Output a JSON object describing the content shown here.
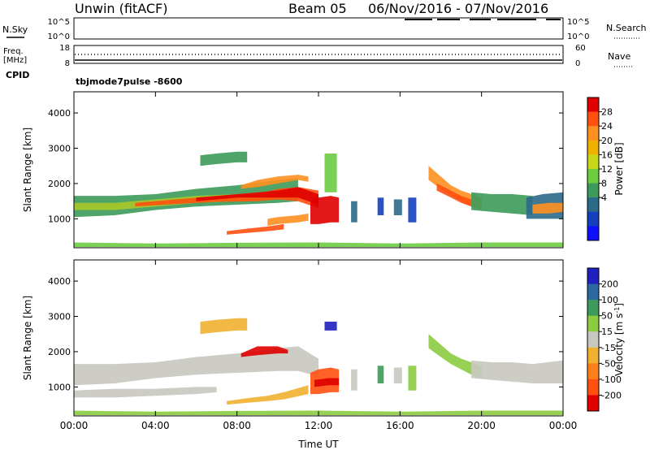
{
  "header": {
    "station": "Unwin (fitACF)",
    "beam": "Beam 05",
    "date_range": "06/Nov/2016 - 07/Nov/2016"
  },
  "nsky_panel": {
    "left_label": "N.Sky",
    "right_label": "N.Search",
    "ticks": [
      "10^5",
      "10^0"
    ],
    "right_ticks": [
      "10^5",
      "10^0"
    ]
  },
  "freq_panel": {
    "left_label_1": "Freq.",
    "left_label_2": "[MHz]",
    "left_ticks": [
      "18",
      "8"
    ],
    "right_label": "Nave",
    "right_ticks": [
      "60",
      "0"
    ],
    "cpid_label": "CPID",
    "cpid_value": "tbjmode7pulse -8600"
  },
  "power_colorbar": {
    "label": "Power [dB]",
    "ticks": [
      "28",
      "24",
      "20",
      "16",
      "12",
      "8",
      "4"
    ],
    "colors": [
      "#e00000",
      "#ff5010",
      "#ff9020",
      "#f0b000",
      "#c8d818",
      "#6ccc40",
      "#3c9a5a",
      "#2c6a8a",
      "#1440c0",
      "#1010ff"
    ]
  },
  "velocity_colorbar": {
    "label": "Velocity [m s",
    "label_sup": "-1",
    "label_end": "]",
    "ticks": [
      "200",
      "100",
      "50",
      "15",
      "-15",
      "-50",
      "-100",
      "-200"
    ],
    "colors": [
      "#2020c0",
      "#2a6aa0",
      "#3c9a5a",
      "#8ccc40",
      "#c8c8c0",
      "#f0b030",
      "#ff8018",
      "#ff5010",
      "#e00000"
    ]
  },
  "chart_data": [
    {
      "type": "heatmap",
      "name": "power",
      "xlabel": "",
      "ylabel": "Slant Range [km]",
      "x_ticks": [
        "00:00",
        "04:00",
        "08:00",
        "12:00",
        "16:00",
        "20:00",
        "00:00"
      ],
      "x_tick_hours": [
        0,
        4,
        8,
        12,
        16,
        20,
        24
      ],
      "y_ticks": [
        1000,
        2000,
        3000,
        4000
      ],
      "xlim": [
        0,
        24
      ],
      "ylim": [
        180,
        4600
      ],
      "bands": [
        {
          "h": [
            0,
            2,
            4,
            6,
            8,
            10,
            11
          ],
          "lo": [
            1050,
            1100,
            1250,
            1350,
            1400,
            1450,
            1500
          ],
          "hi": [
            1650,
            1650,
            1700,
            1850,
            1950,
            2100,
            2150
          ],
          "color": "#3c9a5a"
        },
        {
          "h": [
            0,
            2,
            4,
            6,
            8,
            10,
            11
          ],
          "lo": [
            1250,
            1250,
            1350,
            1450,
            1500,
            1550,
            1600
          ],
          "hi": [
            1450,
            1450,
            1550,
            1650,
            1700,
            1800,
            1850
          ],
          "color": "#a8c828"
        },
        {
          "h": [
            3,
            5,
            7,
            9,
            10,
            11,
            12
          ],
          "lo": [
            1350,
            1420,
            1480,
            1500,
            1550,
            1500,
            1300
          ],
          "hi": [
            1450,
            1550,
            1650,
            1700,
            1850,
            1900,
            1800
          ],
          "color": "#ff5010"
        },
        {
          "h": [
            6,
            8,
            10,
            11,
            12
          ],
          "lo": [
            1500,
            1600,
            1600,
            1600,
            1400
          ],
          "hi": [
            1600,
            1700,
            1800,
            1900,
            1700
          ],
          "color": "#e00000"
        },
        {
          "h": [
            8.2,
            9,
            10,
            11,
            11.5
          ],
          "lo": [
            1850,
            1900,
            2000,
            2100,
            2050
          ],
          "hi": [
            1950,
            2100,
            2200,
            2250,
            2200
          ],
          "color": "#ff9020"
        },
        {
          "h": [
            11.6,
            12,
            12.6,
            13
          ],
          "lo": [
            850,
            850,
            900,
            900
          ],
          "hi": [
            1500,
            1600,
            1650,
            1600
          ],
          "color": "#e00000"
        },
        {
          "h": [
            7.5,
            8.5,
            9.5,
            10.3
          ],
          "lo": [
            550,
            600,
            650,
            700
          ],
          "hi": [
            650,
            720,
            780,
            850
          ],
          "color": "#ff5010"
        },
        {
          "h": [
            9.5,
            10,
            11,
            11.5
          ],
          "lo": [
            800,
            850,
            900,
            950
          ],
          "hi": [
            1000,
            1050,
            1100,
            1150
          ],
          "color": "#ff9020"
        },
        {
          "h": [
            6.2,
            7,
            8,
            8.5
          ],
          "lo": [
            2500,
            2550,
            2600,
            2600
          ],
          "hi": [
            2800,
            2850,
            2900,
            2900
          ],
          "color": "#3c9a5a"
        },
        {
          "h": [
            17.4,
            18,
            18.5,
            19,
            19.5,
            20
          ],
          "lo": [
            2100,
            1850,
            1650,
            1500,
            1350,
            1250
          ],
          "hi": [
            2500,
            2200,
            1950,
            1800,
            1700,
            1600
          ],
          "color": "#ff9020"
        },
        {
          "h": [
            17.8,
            18.5,
            19,
            19.5
          ],
          "lo": [
            1800,
            1600,
            1450,
            1350
          ],
          "hi": [
            2000,
            1800,
            1650,
            1550
          ],
          "color": "#ff5010"
        },
        {
          "h": [
            19.5,
            20.5,
            21.5,
            22.5
          ],
          "lo": [
            1250,
            1200,
            1150,
            1100
          ],
          "hi": [
            1750,
            1700,
            1700,
            1650
          ],
          "color": "#3c9a5a"
        },
        {
          "h": [
            22.2,
            23,
            24
          ],
          "lo": [
            1000,
            1000,
            1000
          ],
          "hi": [
            1600,
            1700,
            1750
          ],
          "color": "#2c6a8a"
        },
        {
          "h": [
            22.5,
            23.3,
            24
          ],
          "lo": [
            1150,
            1150,
            1200
          ],
          "hi": [
            1400,
            1450,
            1450
          ],
          "color": "#ff9020"
        },
        {
          "h": [
            0,
            4,
            8,
            12,
            16,
            20,
            24
          ],
          "lo": [
            200,
            200,
            200,
            200,
            200,
            200,
            200
          ],
          "hi": [
            330,
            300,
            320,
            330,
            300,
            330,
            330
          ],
          "color": "#6ccc40"
        },
        {
          "h": [
            13.6,
            13.9
          ],
          "lo": [
            900,
            900
          ],
          "hi": [
            1500,
            1500
          ],
          "color": "#2c6a8a"
        },
        {
          "h": [
            14.9,
            15.2
          ],
          "lo": [
            1100,
            1100
          ],
          "hi": [
            1600,
            1600
          ],
          "color": "#1440c0"
        },
        {
          "h": [
            15.7,
            16.1
          ],
          "lo": [
            1100,
            1100
          ],
          "hi": [
            1550,
            1550
          ],
          "color": "#2c6a8a"
        },
        {
          "h": [
            16.4,
            16.8
          ],
          "lo": [
            900,
            900
          ],
          "hi": [
            1600,
            1600
          ],
          "color": "#1440c0"
        },
        {
          "h": [
            12.3,
            12.9
          ],
          "lo": [
            1750,
            1750
          ],
          "hi": [
            2850,
            2850
          ],
          "color": "#6ccc40"
        }
      ]
    },
    {
      "type": "heatmap",
      "name": "velocity",
      "xlabel": "Time UT",
      "ylabel": "Slant Range [km]",
      "x_ticks": [
        "00:00",
        "04:00",
        "08:00",
        "12:00",
        "16:00",
        "20:00",
        "00:00"
      ],
      "x_tick_hours": [
        0,
        4,
        8,
        12,
        16,
        20,
        24
      ],
      "y_ticks": [
        1000,
        2000,
        3000,
        4000
      ],
      "xlim": [
        0,
        24
      ],
      "ylim": [
        180,
        4600
      ],
      "bands": [
        {
          "h": [
            0,
            2,
            4,
            6,
            8,
            10,
            11,
            12
          ],
          "lo": [
            1050,
            1100,
            1250,
            1350,
            1400,
            1450,
            1450,
            1300
          ],
          "hi": [
            1650,
            1650,
            1700,
            1850,
            1950,
            2100,
            2150,
            1800
          ],
          "color": "#c8c8c0"
        },
        {
          "h": [
            0,
            2,
            4,
            6,
            7
          ],
          "lo": [
            700,
            700,
            750,
            800,
            850
          ],
          "hi": [
            900,
            950,
            950,
            1000,
            1000
          ],
          "color": "#c8c8c0"
        },
        {
          "h": [
            8.2,
            9,
            10,
            10.5
          ],
          "lo": [
            1850,
            1900,
            1950,
            1950
          ],
          "hi": [
            1950,
            2150,
            2150,
            2050
          ],
          "color": "#e00000"
        },
        {
          "h": [
            11.6,
            12,
            12.6,
            13
          ],
          "lo": [
            800,
            800,
            850,
            850
          ],
          "hi": [
            1400,
            1500,
            1550,
            1500
          ],
          "color": "#ff5010"
        },
        {
          "h": [
            11.8,
            12.5,
            13
          ],
          "lo": [
            1000,
            1050,
            1050
          ],
          "hi": [
            1200,
            1250,
            1250
          ],
          "color": "#e00000"
        },
        {
          "h": [
            7.5,
            8.5,
            9.5,
            10.3,
            11.5
          ],
          "lo": [
            500,
            550,
            600,
            650,
            800
          ],
          "hi": [
            600,
            680,
            750,
            850,
            1050
          ],
          "color": "#f0b030"
        },
        {
          "h": [
            6.2,
            7,
            8,
            8.5
          ],
          "lo": [
            2500,
            2550,
            2600,
            2600
          ],
          "hi": [
            2850,
            2900,
            2950,
            2950
          ],
          "color": "#f0b030"
        },
        {
          "h": [
            17.4,
            18,
            18.5,
            19,
            19.5,
            20
          ],
          "lo": [
            2100,
            1850,
            1650,
            1500,
            1350,
            1250
          ],
          "hi": [
            2500,
            2200,
            1950,
            1800,
            1700,
            1600
          ],
          "color": "#8ccc40"
        },
        {
          "h": [
            19.5,
            20.5,
            21.5,
            22.5,
            24
          ],
          "lo": [
            1250,
            1200,
            1150,
            1100,
            1100
          ],
          "hi": [
            1750,
            1700,
            1700,
            1650,
            1750
          ],
          "color": "#c8c8c0"
        },
        {
          "h": [
            0,
            4,
            8,
            12,
            16,
            20,
            24
          ],
          "lo": [
            200,
            200,
            200,
            200,
            200,
            200,
            200
          ],
          "hi": [
            330,
            300,
            320,
            330,
            300,
            330,
            330
          ],
          "color": "#8ccc40"
        },
        {
          "h": [
            13.6,
            13.9
          ],
          "lo": [
            900,
            900
          ],
          "hi": [
            1500,
            1500
          ],
          "color": "#c8c8c0"
        },
        {
          "h": [
            14.9,
            15.2
          ],
          "lo": [
            1100,
            1100
          ],
          "hi": [
            1600,
            1600
          ],
          "color": "#3c9a5a"
        },
        {
          "h": [
            15.7,
            16.1
          ],
          "lo": [
            1100,
            1100
          ],
          "hi": [
            1550,
            1550
          ],
          "color": "#c8c8c0"
        },
        {
          "h": [
            16.4,
            16.8
          ],
          "lo": [
            900,
            900
          ],
          "hi": [
            1600,
            1600
          ],
          "color": "#8ccc40"
        },
        {
          "h": [
            12.3,
            12.9
          ],
          "lo": [
            2600,
            2600
          ],
          "hi": [
            2850,
            2850
          ],
          "color": "#2020c0"
        }
      ]
    }
  ]
}
